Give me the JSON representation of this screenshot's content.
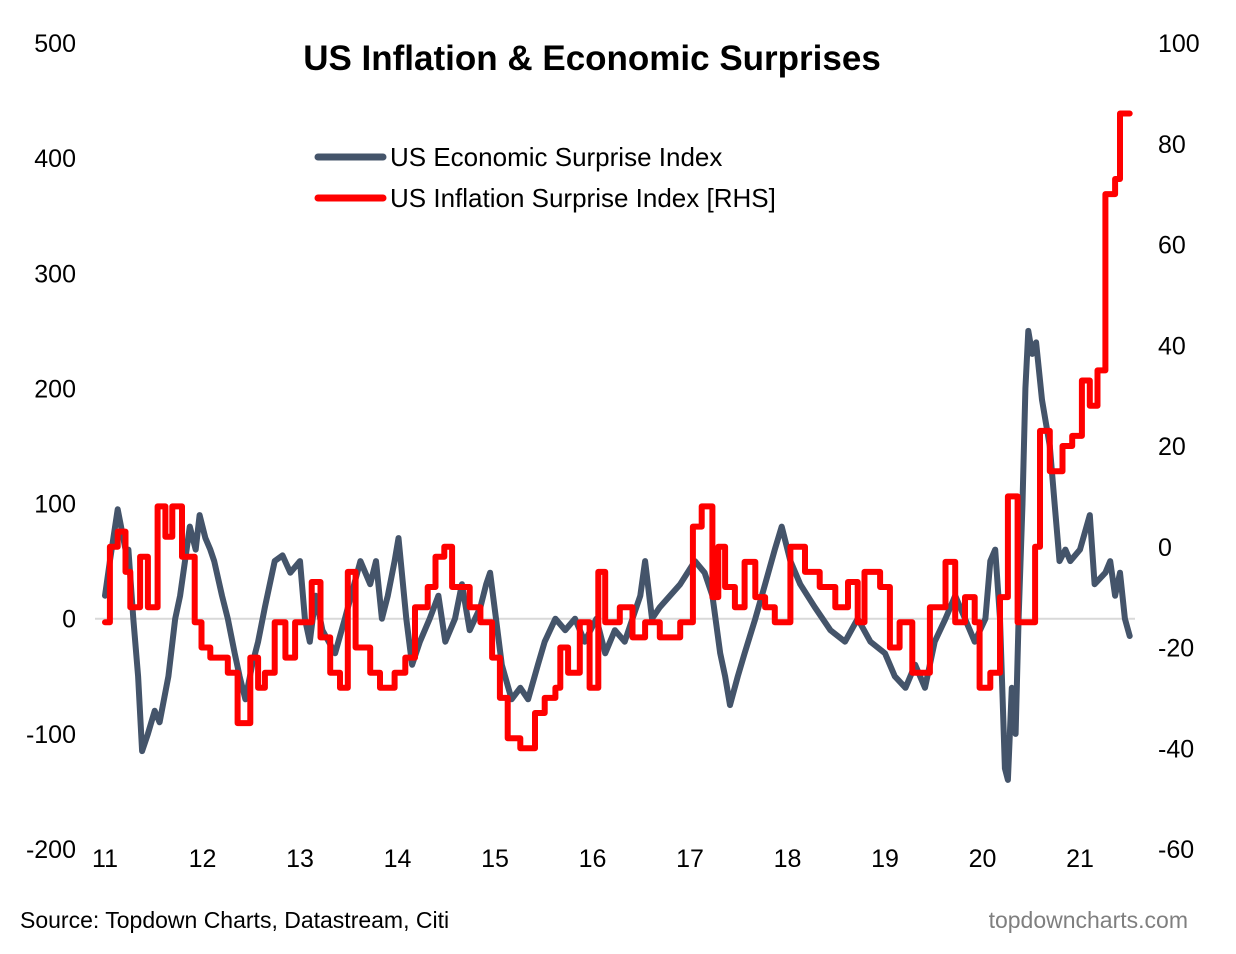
{
  "chart_data": {
    "type": "line",
    "title": "US Inflation & Economic Surprises",
    "source": "Source: Topdown Charts, Datastream, Citi",
    "watermark": "topdowncharts.com",
    "x_ticks": [
      {
        "v": 11,
        "label": "11"
      },
      {
        "v": 12,
        "label": "12"
      },
      {
        "v": 13,
        "label": "13"
      },
      {
        "v": 14,
        "label": "14"
      },
      {
        "v": 15,
        "label": "15"
      },
      {
        "v": 16,
        "label": "16"
      },
      {
        "v": 17,
        "label": "17"
      },
      {
        "v": 18,
        "label": "18"
      },
      {
        "v": 19,
        "label": "19"
      },
      {
        "v": 20,
        "label": "20"
      },
      {
        "v": 21,
        "label": "21"
      }
    ],
    "left_axis": {
      "ylim": [
        -200,
        500
      ],
      "ticks": [
        {
          "v": 500,
          "label": "500"
        },
        {
          "v": 400,
          "label": "400"
        },
        {
          "v": 300,
          "label": "300"
        },
        {
          "v": 200,
          "label": "200"
        },
        {
          "v": 100,
          "label": "100"
        },
        {
          "v": 0,
          "label": "0"
        },
        {
          "v": -100,
          "label": "-100"
        },
        {
          "v": -200,
          "label": "-200"
        }
      ]
    },
    "right_axis": {
      "ylim": [
        -60,
        100
      ],
      "ticks": [
        {
          "v": 100,
          "label": "100"
        },
        {
          "v": 80,
          "label": "80"
        },
        {
          "v": 60,
          "label": "60"
        },
        {
          "v": 40,
          "label": "40"
        },
        {
          "v": 20,
          "label": "20"
        },
        {
          "v": 0,
          "label": "0"
        },
        {
          "v": -20,
          "label": "-20"
        },
        {
          "v": -40,
          "label": "-40"
        },
        {
          "v": -60,
          "label": "-60"
        }
      ]
    },
    "legend_placement": "top-center",
    "zero_line": true,
    "grid": false,
    "series": [
      {
        "name": "US Economic Surprise Index",
        "axis": "left",
        "color": "#44546a",
        "style": "line",
        "points": [
          [
            11.0,
            20
          ],
          [
            11.05,
            50
          ],
          [
            11.13,
            95
          ],
          [
            11.21,
            60
          ],
          [
            11.24,
            60
          ],
          [
            11.29,
            0
          ],
          [
            11.34,
            -50
          ],
          [
            11.38,
            -115
          ],
          [
            11.44,
            -100
          ],
          [
            11.51,
            -80
          ],
          [
            11.56,
            -90
          ],
          [
            11.65,
            -50
          ],
          [
            11.72,
            0
          ],
          [
            11.77,
            20
          ],
          [
            11.82,
            50
          ],
          [
            11.87,
            80
          ],
          [
            11.93,
            60
          ],
          [
            11.97,
            90
          ],
          [
            12.03,
            70
          ],
          [
            12.08,
            60
          ],
          [
            12.12,
            50
          ],
          [
            12.2,
            20
          ],
          [
            12.26,
            0
          ],
          [
            12.33,
            -30
          ],
          [
            12.38,
            -50
          ],
          [
            12.44,
            -70
          ],
          [
            12.51,
            -40
          ],
          [
            12.57,
            -20
          ],
          [
            12.64,
            10
          ],
          [
            12.74,
            50
          ],
          [
            12.82,
            55
          ],
          [
            12.9,
            40
          ],
          [
            13.0,
            50
          ],
          [
            13.05,
            0
          ],
          [
            13.1,
            -20
          ],
          [
            13.16,
            20
          ],
          [
            13.23,
            -10
          ],
          [
            13.36,
            -30
          ],
          [
            13.46,
            0
          ],
          [
            13.62,
            50
          ],
          [
            13.72,
            30
          ],
          [
            13.78,
            50
          ],
          [
            13.84,
            0
          ],
          [
            13.9,
            20
          ],
          [
            13.97,
            50
          ],
          [
            14.01,
            70
          ],
          [
            14.09,
            0
          ],
          [
            14.15,
            -40
          ],
          [
            14.23,
            -20
          ],
          [
            14.33,
            0
          ],
          [
            14.42,
            20
          ],
          [
            14.49,
            -20
          ],
          [
            14.59,
            0
          ],
          [
            14.66,
            30
          ],
          [
            14.74,
            -10
          ],
          [
            14.85,
            10
          ],
          [
            14.91,
            30
          ],
          [
            14.95,
            40
          ],
          [
            15.01,
            0
          ],
          [
            15.07,
            -40
          ],
          [
            15.17,
            -70
          ],
          [
            15.26,
            -60
          ],
          [
            15.34,
            -70
          ],
          [
            15.44,
            -40
          ],
          [
            15.51,
            -20
          ],
          [
            15.62,
            0
          ],
          [
            15.72,
            -10
          ],
          [
            15.82,
            0
          ],
          [
            15.92,
            -20
          ],
          [
            16.04,
            0
          ],
          [
            16.13,
            -30
          ],
          [
            16.23,
            -10
          ],
          [
            16.33,
            -20
          ],
          [
            16.49,
            20
          ],
          [
            16.54,
            50
          ],
          [
            16.61,
            0
          ],
          [
            16.69,
            10
          ],
          [
            16.9,
            30
          ],
          [
            17.05,
            50
          ],
          [
            17.15,
            40
          ],
          [
            17.23,
            20
          ],
          [
            17.31,
            -30
          ],
          [
            17.36,
            -50
          ],
          [
            17.41,
            -75
          ],
          [
            17.49,
            -50
          ],
          [
            17.56,
            -30
          ],
          [
            17.67,
            0
          ],
          [
            17.77,
            30
          ],
          [
            17.87,
            60
          ],
          [
            17.94,
            80
          ],
          [
            18.03,
            50
          ],
          [
            18.13,
            30
          ],
          [
            18.28,
            10
          ],
          [
            18.44,
            -10
          ],
          [
            18.59,
            -20
          ],
          [
            18.72,
            0
          ],
          [
            18.85,
            -20
          ],
          [
            19.0,
            -30
          ],
          [
            19.1,
            -50
          ],
          [
            19.21,
            -60
          ],
          [
            19.31,
            -40
          ],
          [
            19.41,
            -60
          ],
          [
            19.51,
            -20
          ],
          [
            19.62,
            0
          ],
          [
            19.72,
            20
          ],
          [
            19.82,
            0
          ],
          [
            19.92,
            -20
          ],
          [
            20.03,
            0
          ],
          [
            20.08,
            50
          ],
          [
            20.13,
            60
          ],
          [
            20.18,
            0
          ],
          [
            20.23,
            -130
          ],
          [
            20.26,
            -140
          ],
          [
            20.3,
            -60
          ],
          [
            20.34,
            -100
          ],
          [
            20.37,
            0
          ],
          [
            20.41,
            100
          ],
          [
            20.44,
            200
          ],
          [
            20.47,
            250
          ],
          [
            20.51,
            230
          ],
          [
            20.55,
            240
          ],
          [
            20.61,
            190
          ],
          [
            20.69,
            150
          ],
          [
            20.74,
            100
          ],
          [
            20.79,
            50
          ],
          [
            20.85,
            60
          ],
          [
            20.9,
            50
          ],
          [
            21.0,
            60
          ],
          [
            21.1,
            90
          ],
          [
            21.15,
            30
          ],
          [
            21.26,
            40
          ],
          [
            21.31,
            50
          ],
          [
            21.36,
            20
          ],
          [
            21.41,
            40
          ],
          [
            21.46,
            0
          ],
          [
            21.51,
            -15
          ]
        ]
      },
      {
        "name": "US Inflation Surprise Index [RHS]",
        "axis": "right",
        "color": "#ff0000",
        "style": "step",
        "points": [
          [
            11.0,
            -15
          ],
          [
            11.05,
            0
          ],
          [
            11.13,
            3
          ],
          [
            11.21,
            -5
          ],
          [
            11.26,
            -12
          ],
          [
            11.36,
            -2
          ],
          [
            11.44,
            -12
          ],
          [
            11.54,
            8
          ],
          [
            11.62,
            2
          ],
          [
            11.69,
            8
          ],
          [
            11.79,
            -2
          ],
          [
            11.92,
            -15
          ],
          [
            11.99,
            -20
          ],
          [
            12.08,
            -22
          ],
          [
            12.26,
            -25
          ],
          [
            12.36,
            -35
          ],
          [
            12.49,
            -22
          ],
          [
            12.57,
            -28
          ],
          [
            12.64,
            -25
          ],
          [
            12.74,
            -15
          ],
          [
            12.85,
            -22
          ],
          [
            12.95,
            -15
          ],
          [
            13.12,
            -7
          ],
          [
            13.21,
            -18
          ],
          [
            13.31,
            -25
          ],
          [
            13.41,
            -28
          ],
          [
            13.49,
            -5
          ],
          [
            13.57,
            -20
          ],
          [
            13.72,
            -25
          ],
          [
            13.82,
            -28
          ],
          [
            13.97,
            -25
          ],
          [
            14.08,
            -22
          ],
          [
            14.18,
            -12
          ],
          [
            14.31,
            -8
          ],
          [
            14.39,
            -2
          ],
          [
            14.48,
            0
          ],
          [
            14.56,
            -8
          ],
          [
            14.74,
            -12
          ],
          [
            14.85,
            -15
          ],
          [
            14.97,
            -22
          ],
          [
            15.05,
            -30
          ],
          [
            15.13,
            -38
          ],
          [
            15.26,
            -40
          ],
          [
            15.41,
            -33
          ],
          [
            15.51,
            -30
          ],
          [
            15.62,
            -28
          ],
          [
            15.67,
            -20
          ],
          [
            15.75,
            -25
          ],
          [
            15.87,
            -15
          ],
          [
            15.97,
            -28
          ],
          [
            16.06,
            -5
          ],
          [
            16.13,
            -15
          ],
          [
            16.28,
            -12
          ],
          [
            16.41,
            -18
          ],
          [
            16.54,
            -15
          ],
          [
            16.69,
            -18
          ],
          [
            16.9,
            -15
          ],
          [
            17.03,
            4
          ],
          [
            17.12,
            8
          ],
          [
            17.23,
            -10
          ],
          [
            17.29,
            0
          ],
          [
            17.36,
            -8
          ],
          [
            17.46,
            -12
          ],
          [
            17.56,
            -3
          ],
          [
            17.67,
            -10
          ],
          [
            17.77,
            -12
          ],
          [
            17.87,
            -15
          ],
          [
            18.03,
            0
          ],
          [
            18.18,
            -5
          ],
          [
            18.33,
            -8
          ],
          [
            18.49,
            -12
          ],
          [
            18.62,
            -7
          ],
          [
            18.72,
            -15
          ],
          [
            18.79,
            -5
          ],
          [
            18.95,
            -8
          ],
          [
            19.05,
            -20
          ],
          [
            19.15,
            -15
          ],
          [
            19.28,
            -25
          ],
          [
            19.46,
            -12
          ],
          [
            19.62,
            -3
          ],
          [
            19.72,
            -15
          ],
          [
            19.82,
            -10
          ],
          [
            19.92,
            -15
          ],
          [
            19.97,
            -28
          ],
          [
            20.08,
            -25
          ],
          [
            20.18,
            -10
          ],
          [
            20.26,
            10
          ],
          [
            20.36,
            -15
          ],
          [
            20.49,
            -15
          ],
          [
            20.54,
            0
          ],
          [
            20.59,
            23
          ],
          [
            20.69,
            15
          ],
          [
            20.82,
            20
          ],
          [
            20.92,
            22
          ],
          [
            21.02,
            33
          ],
          [
            21.1,
            28
          ],
          [
            21.18,
            35
          ],
          [
            21.26,
            70
          ],
          [
            21.36,
            73
          ],
          [
            21.41,
            86
          ],
          [
            21.51,
            86
          ]
        ]
      }
    ]
  }
}
